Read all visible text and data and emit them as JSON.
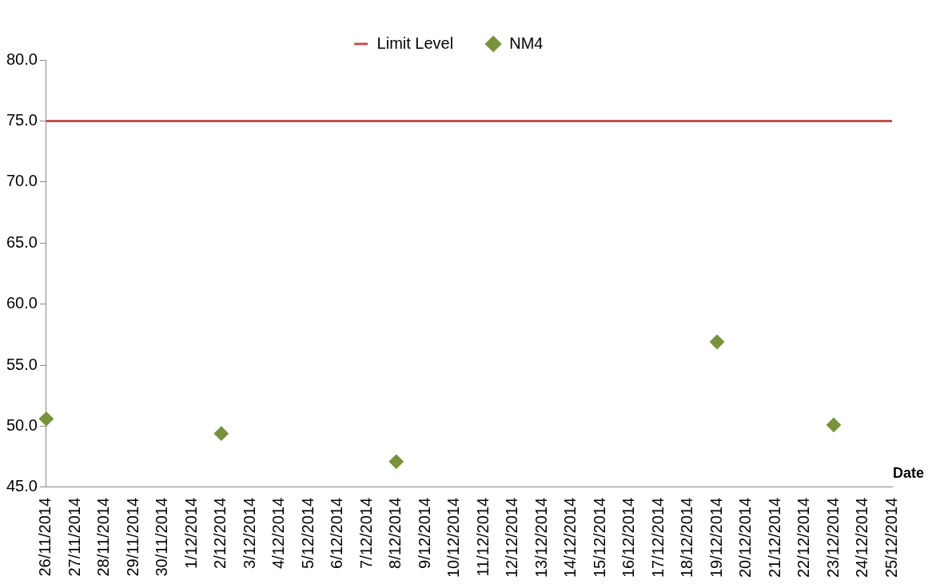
{
  "chart_data": {
    "type": "scatter",
    "xlabel": "Date",
    "categories": [
      "26/11/2014",
      "27/11/2014",
      "28/11/2014",
      "29/11/2014",
      "30/11/2014",
      "1/12/2014",
      "2/12/2014",
      "3/12/2014",
      "4/12/2014",
      "5/12/2014",
      "6/12/2014",
      "7/12/2014",
      "8/12/2014",
      "9/12/2014",
      "10/12/2014",
      "11/12/2014",
      "12/12/2014",
      "13/12/2014",
      "14/12/2014",
      "15/12/2014",
      "16/12/2014",
      "17/12/2014",
      "18/12/2014",
      "19/12/2014",
      "20/12/2014",
      "21/12/2014",
      "22/12/2014",
      "23/12/2014",
      "24/12/2014",
      "25/12/2014"
    ],
    "series": [
      {
        "name": "Limit Level",
        "type": "line",
        "marker": "none",
        "color": "#c0504d",
        "values": [
          75,
          75,
          75,
          75,
          75,
          75,
          75,
          75,
          75,
          75,
          75,
          75,
          75,
          75,
          75,
          75,
          75,
          75,
          75,
          75,
          75,
          75,
          75,
          75,
          75,
          75,
          75,
          75,
          75,
          75
        ]
      },
      {
        "name": "NM4",
        "type": "scatter",
        "marker": "diamond",
        "color": "#77933c",
        "values": [
          50.6,
          null,
          null,
          null,
          null,
          null,
          49.4,
          null,
          null,
          null,
          null,
          null,
          47.1,
          null,
          null,
          null,
          null,
          null,
          null,
          null,
          null,
          null,
          null,
          56.9,
          null,
          null,
          null,
          50.1,
          null,
          null
        ]
      }
    ],
    "ylim": [
      45,
      80
    ],
    "yticks": [
      {
        "value": 45,
        "label": "45.0"
      },
      {
        "value": 50,
        "label": "50.0"
      },
      {
        "value": 55,
        "label": "55.0"
      },
      {
        "value": 60,
        "label": "60.0"
      },
      {
        "value": 65,
        "label": "65.0"
      },
      {
        "value": 70,
        "label": "70.0"
      },
      {
        "value": 75,
        "label": "75.0"
      },
      {
        "value": 80,
        "label": "80.0"
      }
    ],
    "grid": false,
    "legend": "top"
  }
}
